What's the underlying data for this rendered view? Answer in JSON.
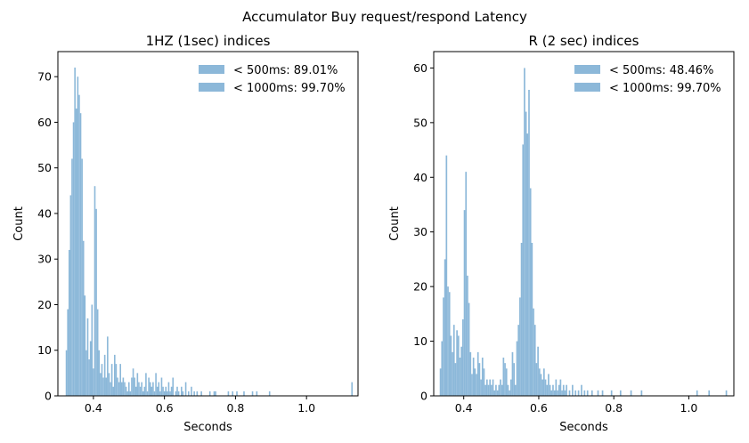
{
  "figure": {
    "suptitle": "Accumulator Buy request/respond Latency",
    "bar_color": "#8cb8d9"
  },
  "chart_data": [
    {
      "type": "bar",
      "title": "1HZ (1sec) indices",
      "xlabel": "Seconds",
      "ylabel": "Count",
      "xlim": [
        0.3,
        1.145
      ],
      "ylim": [
        0,
        75.5
      ],
      "xticks": [
        {
          "value": 0.4,
          "label": "0.4"
        },
        {
          "value": 0.6,
          "label": "0.6"
        },
        {
          "value": 0.8,
          "label": "0.8"
        },
        {
          "value": 1.0,
          "label": "1.0"
        }
      ],
      "yticks": [
        {
          "value": 0,
          "label": "0"
        },
        {
          "value": 10,
          "label": "10"
        },
        {
          "value": 20,
          "label": "20"
        },
        {
          "value": 30,
          "label": "30"
        },
        {
          "value": 40,
          "label": "40"
        },
        {
          "value": 50,
          "label": "50"
        },
        {
          "value": 60,
          "label": "60"
        },
        {
          "value": 70,
          "label": "70"
        }
      ],
      "legend": {
        "placement": "top-right",
        "entries": [
          "< 500ms: 89.01%",
          "< 1000ms: 99.70%"
        ]
      },
      "bin_width": 0.004,
      "bins": [
        [
          0.322,
          10
        ],
        [
          0.326,
          19
        ],
        [
          0.33,
          32
        ],
        [
          0.334,
          44
        ],
        [
          0.338,
          52
        ],
        [
          0.342,
          60
        ],
        [
          0.346,
          72
        ],
        [
          0.35,
          63
        ],
        [
          0.354,
          70
        ],
        [
          0.358,
          66
        ],
        [
          0.362,
          62
        ],
        [
          0.366,
          52
        ],
        [
          0.37,
          34
        ],
        [
          0.374,
          22
        ],
        [
          0.378,
          10
        ],
        [
          0.382,
          17
        ],
        [
          0.386,
          8
        ],
        [
          0.39,
          12
        ],
        [
          0.394,
          20
        ],
        [
          0.398,
          6
        ],
        [
          0.402,
          46
        ],
        [
          0.406,
          41
        ],
        [
          0.41,
          19
        ],
        [
          0.414,
          10
        ],
        [
          0.418,
          5
        ],
        [
          0.422,
          7
        ],
        [
          0.426,
          4
        ],
        [
          0.43,
          9
        ],
        [
          0.434,
          4
        ],
        [
          0.438,
          13
        ],
        [
          0.442,
          5
        ],
        [
          0.446,
          3
        ],
        [
          0.45,
          7
        ],
        [
          0.454,
          2
        ],
        [
          0.458,
          9
        ],
        [
          0.462,
          7
        ],
        [
          0.466,
          4
        ],
        [
          0.47,
          3
        ],
        [
          0.474,
          7
        ],
        [
          0.478,
          3
        ],
        [
          0.482,
          4
        ],
        [
          0.486,
          3
        ],
        [
          0.49,
          2
        ],
        [
          0.494,
          1
        ],
        [
          0.498,
          3
        ],
        [
          0.502,
          1
        ],
        [
          0.506,
          4
        ],
        [
          0.51,
          6
        ],
        [
          0.514,
          4
        ],
        [
          0.518,
          2
        ],
        [
          0.522,
          5
        ],
        [
          0.526,
          3
        ],
        [
          0.53,
          2
        ],
        [
          0.534,
          3
        ],
        [
          0.538,
          1
        ],
        [
          0.542,
          2
        ],
        [
          0.546,
          5
        ],
        [
          0.55,
          1
        ],
        [
          0.554,
          4
        ],
        [
          0.558,
          3
        ],
        [
          0.562,
          2
        ],
        [
          0.566,
          3
        ],
        [
          0.57,
          1
        ],
        [
          0.574,
          5
        ],
        [
          0.578,
          2
        ],
        [
          0.582,
          3
        ],
        [
          0.586,
          1
        ],
        [
          0.59,
          4
        ],
        [
          0.594,
          2
        ],
        [
          0.598,
          1
        ],
        [
          0.602,
          2
        ],
        [
          0.606,
          1
        ],
        [
          0.61,
          3
        ],
        [
          0.614,
          1
        ],
        [
          0.618,
          2
        ],
        [
          0.622,
          4
        ],
        [
          0.63,
          1
        ],
        [
          0.634,
          2
        ],
        [
          0.638,
          1
        ],
        [
          0.646,
          2
        ],
        [
          0.65,
          1
        ],
        [
          0.658,
          3
        ],
        [
          0.666,
          1
        ],
        [
          0.674,
          2
        ],
        [
          0.682,
          1
        ],
        [
          0.69,
          1
        ],
        [
          0.702,
          1
        ],
        [
          0.726,
          1
        ],
        [
          0.738,
          1
        ],
        [
          0.742,
          1
        ],
        [
          0.778,
          1
        ],
        [
          0.79,
          1
        ],
        [
          0.802,
          1
        ],
        [
          0.822,
          1
        ],
        [
          0.846,
          1
        ],
        [
          0.858,
          1
        ],
        [
          0.894,
          1
        ],
        [
          1.126,
          3
        ]
      ]
    },
    {
      "type": "bar",
      "title": "R (2 sec) indices",
      "xlabel": "Seconds",
      "ylabel": "Count",
      "xlim": [
        0.32,
        1.12
      ],
      "ylim": [
        0,
        63
      ],
      "xticks": [
        {
          "value": 0.4,
          "label": "0.4"
        },
        {
          "value": 0.6,
          "label": "0.6"
        },
        {
          "value": 0.8,
          "label": "0.8"
        },
        {
          "value": 1.0,
          "label": "1.0"
        }
      ],
      "yticks": [
        {
          "value": 0,
          "label": "0"
        },
        {
          "value": 10,
          "label": "10"
        },
        {
          "value": 20,
          "label": "20"
        },
        {
          "value": 30,
          "label": "30"
        },
        {
          "value": 40,
          "label": "40"
        },
        {
          "value": 50,
          "label": "50"
        },
        {
          "value": 60,
          "label": "60"
        }
      ],
      "legend": {
        "placement": "top-right",
        "entries": [
          "< 500ms: 48.46%",
          "< 1000ms: 99.70%"
        ]
      },
      "bin_width": 0.004,
      "bins": [
        [
          0.336,
          5
        ],
        [
          0.34,
          10
        ],
        [
          0.344,
          18
        ],
        [
          0.348,
          25
        ],
        [
          0.352,
          44
        ],
        [
          0.356,
          20
        ],
        [
          0.36,
          19
        ],
        [
          0.364,
          11
        ],
        [
          0.368,
          8
        ],
        [
          0.372,
          13
        ],
        [
          0.376,
          6
        ],
        [
          0.38,
          12
        ],
        [
          0.384,
          11
        ],
        [
          0.388,
          7
        ],
        [
          0.392,
          9
        ],
        [
          0.396,
          14
        ],
        [
          0.4,
          34
        ],
        [
          0.404,
          41
        ],
        [
          0.408,
          22
        ],
        [
          0.412,
          17
        ],
        [
          0.416,
          8
        ],
        [
          0.42,
          4
        ],
        [
          0.424,
          7
        ],
        [
          0.428,
          5
        ],
        [
          0.432,
          4
        ],
        [
          0.436,
          8
        ],
        [
          0.44,
          6
        ],
        [
          0.444,
          3
        ],
        [
          0.448,
          7
        ],
        [
          0.452,
          5
        ],
        [
          0.456,
          2
        ],
        [
          0.46,
          3
        ],
        [
          0.464,
          2
        ],
        [
          0.468,
          3
        ],
        [
          0.472,
          2
        ],
        [
          0.476,
          3
        ],
        [
          0.48,
          1
        ],
        [
          0.484,
          2
        ],
        [
          0.488,
          1
        ],
        [
          0.492,
          2
        ],
        [
          0.496,
          3
        ],
        [
          0.5,
          2
        ],
        [
          0.504,
          7
        ],
        [
          0.508,
          6
        ],
        [
          0.512,
          5
        ],
        [
          0.516,
          2
        ],
        [
          0.52,
          1
        ],
        [
          0.524,
          3
        ],
        [
          0.528,
          8
        ],
        [
          0.532,
          6
        ],
        [
          0.536,
          2
        ],
        [
          0.54,
          10
        ],
        [
          0.544,
          13
        ],
        [
          0.548,
          18
        ],
        [
          0.552,
          28
        ],
        [
          0.556,
          46
        ],
        [
          0.56,
          60
        ],
        [
          0.564,
          52
        ],
        [
          0.568,
          48
        ],
        [
          0.572,
          56
        ],
        [
          0.576,
          38
        ],
        [
          0.58,
          28
        ],
        [
          0.584,
          16
        ],
        [
          0.588,
          13
        ],
        [
          0.592,
          6
        ],
        [
          0.596,
          9
        ],
        [
          0.6,
          5
        ],
        [
          0.604,
          4
        ],
        [
          0.608,
          3
        ],
        [
          0.612,
          5
        ],
        [
          0.616,
          3
        ],
        [
          0.62,
          2
        ],
        [
          0.624,
          4
        ],
        [
          0.628,
          2
        ],
        [
          0.632,
          1
        ],
        [
          0.636,
          2
        ],
        [
          0.64,
          1
        ],
        [
          0.644,
          3
        ],
        [
          0.648,
          1
        ],
        [
          0.652,
          2
        ],
        [
          0.656,
          3
        ],
        [
          0.66,
          1
        ],
        [
          0.664,
          2
        ],
        [
          0.668,
          1
        ],
        [
          0.672,
          2
        ],
        [
          0.68,
          1
        ],
        [
          0.688,
          2
        ],
        [
          0.696,
          1
        ],
        [
          0.704,
          1
        ],
        [
          0.712,
          2
        ],
        [
          0.72,
          1
        ],
        [
          0.728,
          1
        ],
        [
          0.74,
          1
        ],
        [
          0.756,
          1
        ],
        [
          0.768,
          1
        ],
        [
          0.792,
          1
        ],
        [
          0.816,
          1
        ],
        [
          0.844,
          1
        ],
        [
          0.872,
          1
        ],
        [
          1.02,
          1
        ],
        [
          1.052,
          1
        ],
        [
          1.098,
          1
        ]
      ]
    }
  ]
}
